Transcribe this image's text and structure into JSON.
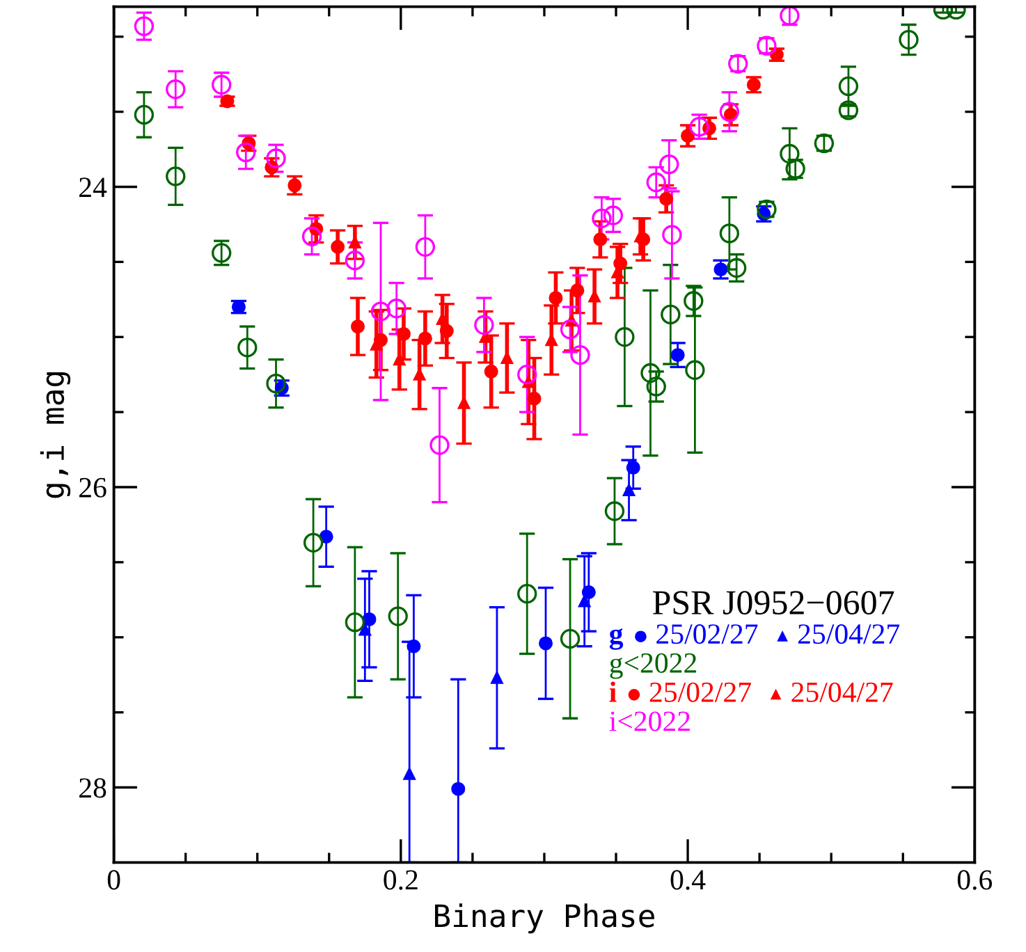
{
  "chart_data": {
    "type": "scatter",
    "xlabel": "Binary Phase",
    "ylabel": "g,i mag",
    "legend_title": "PSR J0952−0607",
    "annotations": [
      "g",
      "i"
    ],
    "xlim": [
      0,
      0.6
    ],
    "ylim": [
      28.5,
      22.8
    ],
    "xticks": [
      0,
      {
        "value": 0.05,
        "label": null
      },
      {
        "value": 0.1,
        "label": null
      },
      {
        "value": 0.15,
        "label": null
      },
      0.2,
      {
        "value": 0.25,
        "label": null
      },
      {
        "value": 0.3,
        "label": null
      },
      {
        "value": 0.35,
        "label": null
      },
      0.4,
      {
        "value": 0.45,
        "label": null
      },
      {
        "value": 0.5,
        "label": null
      },
      {
        "value": 0.55,
        "label": null
      },
      0.6
    ],
    "yticks": [
      {
        "value": 23,
        "label": null
      },
      {
        "value": 23.5,
        "label": null
      },
      24,
      {
        "value": 24.5,
        "label": null
      },
      {
        "value": 25,
        "label": null
      },
      {
        "value": 25.5,
        "label": null
      },
      26,
      {
        "value": 26.5,
        "label": null
      },
      {
        "value": 27,
        "label": null
      },
      {
        "value": 27.5,
        "label": null
      },
      28
    ],
    "legend": "right",
    "grid": false,
    "series": [
      {
        "name": "25/02/27",
        "color": "#0000ff",
        "marker": "circle",
        "x": [
          0.087,
          0.117,
          0.148,
          0.178,
          0.209,
          0.24,
          0.301,
          0.331,
          0.362,
          0.393,
          0.423,
          0.453
        ],
        "values": [
          24.8,
          25.34,
          26.33,
          26.88,
          27.06,
          28.01,
          27.04,
          26.7,
          25.87,
          25.12,
          24.55,
          24.18
        ],
        "errors": [
          0.04,
          0.05,
          0.2,
          0.32,
          0.34,
          [
            27.28,
            28.5
          ],
          0.37,
          0.26,
          0.14,
          0.08,
          0.06,
          0.05
        ]
      },
      {
        "name": "25/04/27",
        "color": "#0000ff",
        "marker": "triangle",
        "x": [
          0.175,
          0.206,
          0.267,
          0.328,
          0.359
        ],
        "values": [
          26.95,
          27.91,
          27.27,
          26.76,
          26.02
        ],
        "errors": [
          0.34,
          [
            27.03,
            28.5
          ],
          0.47,
          0.3,
          0.2
        ]
      },
      {
        "name": "g<2022",
        "color": "#006400",
        "marker": "circle",
        "x": [
          0.021,
          0.043,
          0.075,
          0.093,
          0.113,
          0.139,
          0.168,
          0.198,
          0.288,
          0.318,
          0.349,
          0.356,
          0.374,
          0.378,
          0.388,
          0.404,
          0.405,
          0.429,
          0.434,
          0.455,
          0.471,
          0.475,
          0.495,
          0.512,
          0.512,
          0.554,
          0.578,
          0.587
        ],
        "values": [
          23.52,
          23.93,
          24.44,
          25.07,
          25.31,
          26.37,
          26.9,
          26.86,
          26.71,
          27.01,
          26.16,
          25.0,
          25.24,
          25.33,
          24.85,
          24.76,
          25.22,
          24.31,
          24.54,
          24.15,
          23.78,
          23.88,
          23.71,
          23.33,
          23.49,
          23.02,
          22.82,
          22.82
        ],
        "errors": [
          0.15,
          0.19,
          0.08,
          0.14,
          0.16,
          0.29,
          0.5,
          0.42,
          0.4,
          0.53,
          0.22,
          0.46,
          0.55,
          0.1,
          0.33,
          0.1,
          0.55,
          0.24,
          0.09,
          0.05,
          0.17,
          0.06,
          0.05,
          0.13,
          0.04,
          0.1,
          0.02,
          0.02
        ]
      },
      {
        "name": "25/02/27",
        "color": "#ff0000",
        "marker": "circle",
        "x": [
          0.079,
          0.094,
          0.11,
          0.126,
          0.141,
          0.156,
          0.17,
          0.186,
          0.202,
          0.217,
          0.232,
          0.263,
          0.293,
          0.308,
          0.323,
          0.339,
          0.353,
          0.369,
          0.385,
          0.4,
          0.415,
          0.43,
          0.446,
          0.462
        ],
        "values": [
          23.43,
          23.71,
          23.87,
          23.99,
          24.28,
          24.4,
          24.93,
          25.02,
          24.98,
          25.01,
          24.96,
          25.23,
          25.41,
          24.74,
          24.69,
          24.35,
          24.51,
          24.35,
          24.08,
          23.66,
          23.61,
          23.52,
          23.32,
          23.12
        ],
        "errors": [
          0.03,
          0.05,
          0.06,
          0.06,
          0.09,
          0.11,
          0.19,
          0.2,
          0.17,
          0.18,
          0.18,
          0.24,
          0.27,
          0.17,
          0.15,
          0.12,
          0.13,
          0.14,
          0.09,
          0.07,
          0.07,
          0.07,
          0.05,
          0.04
        ]
      },
      {
        "name": "25/04/27",
        "color": "#ff0000",
        "marker": "triangle",
        "x": [
          0.168,
          0.183,
          0.199,
          0.213,
          0.229,
          0.244,
          0.259,
          0.274,
          0.289,
          0.305,
          0.319,
          0.335,
          0.351,
          0.367
        ],
        "values": [
          24.37,
          25.05,
          25.15,
          25.25,
          24.88,
          25.44,
          25.0,
          25.14,
          25.3,
          25.02,
          24.89,
          24.73,
          24.57,
          24.33
        ],
        "errors": [
          0.11,
          0.22,
          0.2,
          0.23,
          0.16,
          0.27,
          0.17,
          0.23,
          0.28,
          0.23,
          0.2,
          0.18,
          0.17,
          0.12
        ]
      },
      {
        "name": "i<2022",
        "color": "#ff00ff",
        "marker": "circle",
        "x": [
          0.021,
          0.043,
          0.075,
          0.092,
          0.113,
          0.138,
          0.168,
          0.186,
          0.197,
          0.217,
          0.227,
          0.258,
          0.288,
          0.318,
          0.325,
          0.34,
          0.348,
          0.378,
          0.387,
          0.389,
          0.408,
          0.429,
          0.435,
          0.455,
          0.471
        ],
        "values": [
          22.93,
          23.35,
          23.32,
          23.77,
          23.81,
          24.33,
          24.49,
          24.83,
          24.81,
          24.4,
          25.72,
          24.92,
          25.25,
          24.95,
          25.12,
          24.21,
          24.19,
          23.97,
          23.85,
          24.32,
          23.6,
          23.5,
          23.18,
          23.06,
          22.86
        ],
        "errors": [
          0.09,
          0.12,
          0.08,
          0.11,
          0.09,
          0.12,
          0.12,
          0.59,
          0.17,
          0.21,
          0.38,
          0.18,
          0.25,
          0.15,
          0.53,
          0.14,
          0.11,
          0.1,
          0.16,
          0.29,
          0.08,
          0.13,
          0.05,
          0.05,
          0.06
        ]
      }
    ]
  }
}
